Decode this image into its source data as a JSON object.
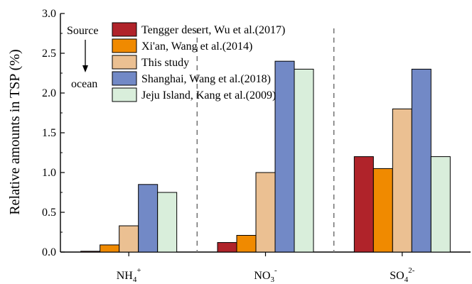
{
  "chart_data": {
    "type": "bar",
    "ylabel": "Relative amounts in TSP (%)",
    "ylim": [
      0,
      3.0
    ],
    "yticks": [
      "0.0",
      "0.5",
      "1.0",
      "1.5",
      "2.0",
      "2.5",
      "3.0"
    ],
    "categories": [
      {
        "base": "NH",
        "sub": "4",
        "sup": "+"
      },
      {
        "base": "NO",
        "sub": "3",
        "sup": "-"
      },
      {
        "base": "SO",
        "sub": "4",
        "sup": "2-"
      }
    ],
    "series": [
      {
        "name": "Tengger desert, Wu et al.(2017)",
        "color": "#B0232A",
        "values": [
          0.01,
          0.12,
          1.2
        ]
      },
      {
        "name": "Xi'an, Wang et al.(2014)",
        "color": "#F08A00",
        "values": [
          0.09,
          0.21,
          1.05
        ]
      },
      {
        "name": "This study",
        "color": "#EBC092",
        "values": [
          0.33,
          1.0,
          1.8
        ]
      },
      {
        "name": "Shanghai, Wang et al.(2018)",
        "color": "#7289C6",
        "values": [
          0.85,
          2.4,
          2.3
        ]
      },
      {
        "name": "Jeju Island, Kang et al.(2009)",
        "color": "#D9EEDB",
        "values": [
          0.75,
          2.3,
          1.2
        ]
      }
    ],
    "annotation": {
      "source_label": "Source",
      "ocean_label": "ocean"
    },
    "legend": "top-left",
    "grid": false
  }
}
